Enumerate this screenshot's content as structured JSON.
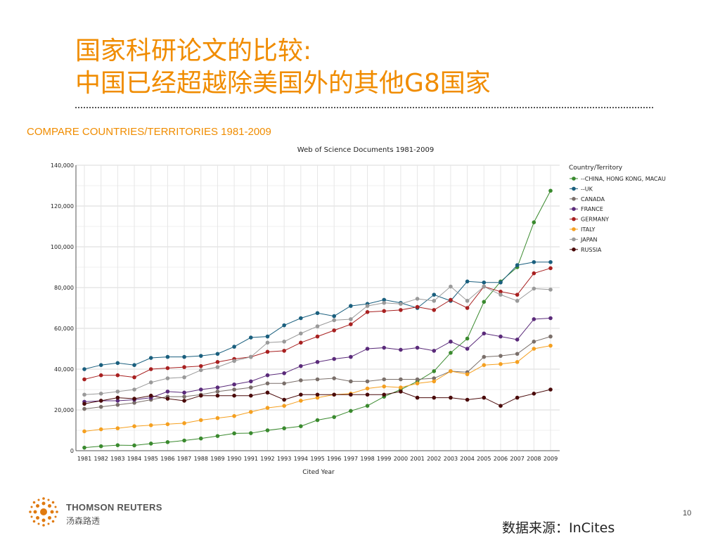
{
  "slide": {
    "title_line1": "国家科研论文的比较:",
    "title_line2": "中国已经超越除美国外的其他G8国家",
    "subtitle": "COMPARE COUNTRIES/TERRITORIES 1981-2009",
    "page_number": "10",
    "source": "数据来源：InCites",
    "logo_name": "THOMSON REUTERS",
    "logo_cn": "汤森路透",
    "title_color": "#f08c00"
  },
  "chart_data": {
    "type": "line",
    "title": "Web of Science Documents 1981-2009",
    "xlabel": "Cited Year",
    "ylabel": "",
    "legend_title": "Country/Territory",
    "legend_position": "right",
    "grid": true,
    "ylim": [
      0,
      140000
    ],
    "yticks": [
      0,
      20000,
      40000,
      60000,
      80000,
      100000,
      120000,
      140000
    ],
    "ytick_labels": [
      "0",
      "20,000",
      "40,000",
      "60,000",
      "80,000",
      "100,000",
      "120,000",
      "140,000"
    ],
    "categories": [
      "1981",
      "1982",
      "1983",
      "1984",
      "1985",
      "1986",
      "1987",
      "1988",
      "1989",
      "1990",
      "1991",
      "1992",
      "1993",
      "1994",
      "1995",
      "1996",
      "1997",
      "1998",
      "1999",
      "2000",
      "2001",
      "2002",
      "2003",
      "2004",
      "2005",
      "2006",
      "2007",
      "2008",
      "2009"
    ],
    "series": [
      {
        "name": "--CHINA, HONG KONG, MACAU",
        "color": "#3a8a2e",
        "values": [
          1500,
          2200,
          2700,
          2600,
          3500,
          4200,
          5000,
          6000,
          7200,
          8500,
          8600,
          10000,
          11000,
          12000,
          15000,
          16500,
          19500,
          22000,
          26500,
          30000,
          34000,
          39000,
          48000,
          55000,
          73000,
          83000,
          90000,
          112000,
          127500
        ]
      },
      {
        "name": "--UK",
        "color": "#1a5f7e",
        "values": [
          40000,
          42000,
          43000,
          42000,
          45500,
          46000,
          46000,
          46500,
          47500,
          51000,
          55500,
          56000,
          61500,
          65000,
          67500,
          66000,
          71000,
          72000,
          74000,
          72500,
          70000,
          76500,
          73500,
          83000,
          82500,
          82500,
          91000,
          92500,
          92500
        ]
      },
      {
        "name": "CANADA",
        "color": "#7a6f6a",
        "values": [
          20500,
          21500,
          22500,
          23500,
          25000,
          26500,
          26500,
          27500,
          29000,
          30000,
          31000,
          33000,
          33000,
          34500,
          35000,
          35500,
          34000,
          34000,
          35000,
          35000,
          35000,
          35500,
          39000,
          38500,
          46000,
          46500,
          47500,
          53500,
          56000
        ]
      },
      {
        "name": "FRANCE",
        "color": "#5a2a7a",
        "values": [
          24000,
          24500,
          24500,
          25000,
          26000,
          29000,
          28500,
          30000,
          31000,
          32500,
          34000,
          37000,
          38000,
          41500,
          43500,
          45000,
          46000,
          50000,
          50500,
          49500,
          50500,
          49000,
          53500,
          50000,
          57500,
          56000,
          54500,
          64500,
          65000
        ]
      },
      {
        "name": "GERMANY",
        "color": "#a82020",
        "values": [
          35000,
          37000,
          37000,
          36000,
          40000,
          40500,
          41000,
          41500,
          43500,
          45000,
          46000,
          48500,
          49000,
          53000,
          56000,
          59000,
          62000,
          68000,
          68500,
          69000,
          70500,
          69000,
          74000,
          70000,
          80500,
          78000,
          76500,
          87000,
          89500
        ]
      },
      {
        "name": "ITALY",
        "color": "#f5a020",
        "values": [
          9500,
          10500,
          11000,
          12000,
          12500,
          13000,
          13500,
          15000,
          16000,
          17000,
          19000,
          21000,
          22000,
          24500,
          26000,
          27500,
          28000,
          30500,
          31500,
          31000,
          33000,
          34000,
          39000,
          37500,
          42000,
          42500,
          43500,
          50000,
          51500
        ]
      },
      {
        "name": "JAPAN",
        "color": "#9a9a9a",
        "values": [
          27500,
          28000,
          29000,
          30000,
          33500,
          35500,
          36000,
          39500,
          41000,
          44000,
          46000,
          53000,
          53500,
          57500,
          61000,
          64000,
          64500,
          71000,
          72500,
          72000,
          74500,
          73500,
          80500,
          73500,
          80500,
          76500,
          73500,
          79500,
          79000
        ]
      },
      {
        "name": "RUSSIA",
        "color": "#4a0a0a",
        "values": [
          23000,
          24500,
          26000,
          25500,
          27000,
          25500,
          24500,
          27000,
          27000,
          27000,
          27000,
          28500,
          25000,
          27500,
          27500,
          27500,
          27500,
          27500,
          27500,
          29000,
          26000,
          26000,
          26000,
          25000,
          26000,
          22000,
          26000,
          28000,
          30000
        ]
      }
    ]
  }
}
